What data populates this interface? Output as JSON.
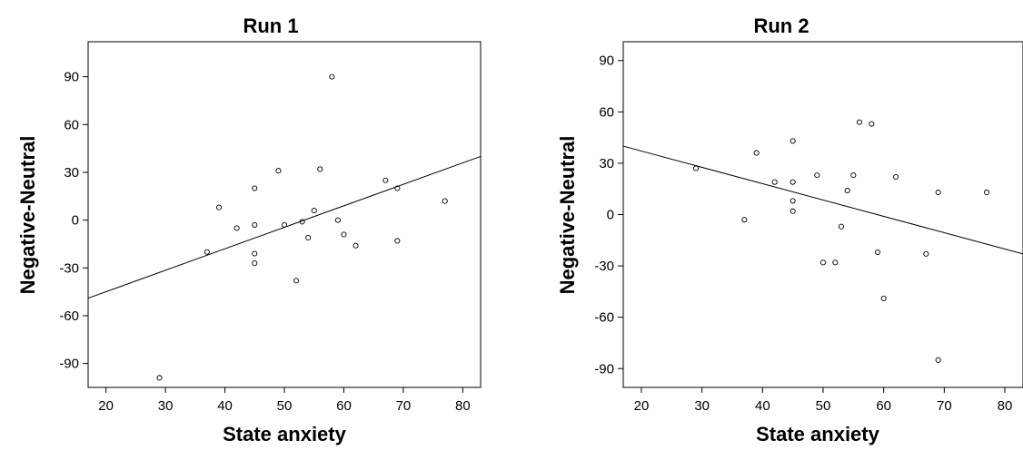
{
  "chart_data": [
    {
      "type": "scatter",
      "title": "Run 1",
      "xlabel": "State anxiety",
      "ylabel": "Negative-Neutral",
      "xlim": [
        17,
        83
      ],
      "ylim": [
        -105,
        112
      ],
      "xticks": [
        "20",
        "30",
        "40",
        "50",
        "60",
        "70",
        "80"
      ],
      "yticks": [
        "-90",
        "-60",
        "-30",
        "0",
        "30",
        "60",
        "90"
      ],
      "grid": false,
      "points": [
        {
          "x": 29,
          "y": -99
        },
        {
          "x": 37,
          "y": -20
        },
        {
          "x": 39,
          "y": 8
        },
        {
          "x": 42,
          "y": -5
        },
        {
          "x": 45,
          "y": 20
        },
        {
          "x": 45,
          "y": -3
        },
        {
          "x": 45,
          "y": -21
        },
        {
          "x": 45,
          "y": -27
        },
        {
          "x": 49,
          "y": 31
        },
        {
          "x": 50,
          "y": -3
        },
        {
          "x": 52,
          "y": -38
        },
        {
          "x": 53,
          "y": -1
        },
        {
          "x": 54,
          "y": -11
        },
        {
          "x": 55,
          "y": 6
        },
        {
          "x": 56,
          "y": 32
        },
        {
          "x": 58,
          "y": 90
        },
        {
          "x": 59,
          "y": 0
        },
        {
          "x": 60,
          "y": -9
        },
        {
          "x": 62,
          "y": -16
        },
        {
          "x": 67,
          "y": 25
        },
        {
          "x": 69,
          "y": 20
        },
        {
          "x": 69,
          "y": -13
        },
        {
          "x": 77,
          "y": 12
        }
      ],
      "fit_line": {
        "x": [
          17,
          83
        ],
        "y": [
          -49,
          40
        ]
      }
    },
    {
      "type": "scatter",
      "title": "Run 2",
      "xlabel": "State anxiety",
      "ylabel": "Negative-Neutral",
      "xlim": [
        17,
        83
      ],
      "ylim": [
        -101,
        101
      ],
      "xticks": [
        "20",
        "30",
        "40",
        "50",
        "60",
        "70",
        "80"
      ],
      "yticks": [
        "-90",
        "-60",
        "-30",
        "0",
        "30",
        "60",
        "90"
      ],
      "grid": false,
      "points": [
        {
          "x": 29,
          "y": 27
        },
        {
          "x": 37,
          "y": -3
        },
        {
          "x": 39,
          "y": 36
        },
        {
          "x": 42,
          "y": 19
        },
        {
          "x": 45,
          "y": 43
        },
        {
          "x": 45,
          "y": 19
        },
        {
          "x": 45,
          "y": 8
        },
        {
          "x": 45,
          "y": 2
        },
        {
          "x": 49,
          "y": 23
        },
        {
          "x": 50,
          "y": -28
        },
        {
          "x": 52,
          "y": -28
        },
        {
          "x": 53,
          "y": -7
        },
        {
          "x": 54,
          "y": 14
        },
        {
          "x": 55,
          "y": 23
        },
        {
          "x": 56,
          "y": 54
        },
        {
          "x": 58,
          "y": 53
        },
        {
          "x": 59,
          "y": -22
        },
        {
          "x": 60,
          "y": -49
        },
        {
          "x": 62,
          "y": 22
        },
        {
          "x": 67,
          "y": -23
        },
        {
          "x": 69,
          "y": 13
        },
        {
          "x": 69,
          "y": -85
        },
        {
          "x": 77,
          "y": 13
        }
      ],
      "fit_line": {
        "x": [
          17,
          83
        ],
        "y": [
          40,
          -23
        ]
      }
    }
  ]
}
